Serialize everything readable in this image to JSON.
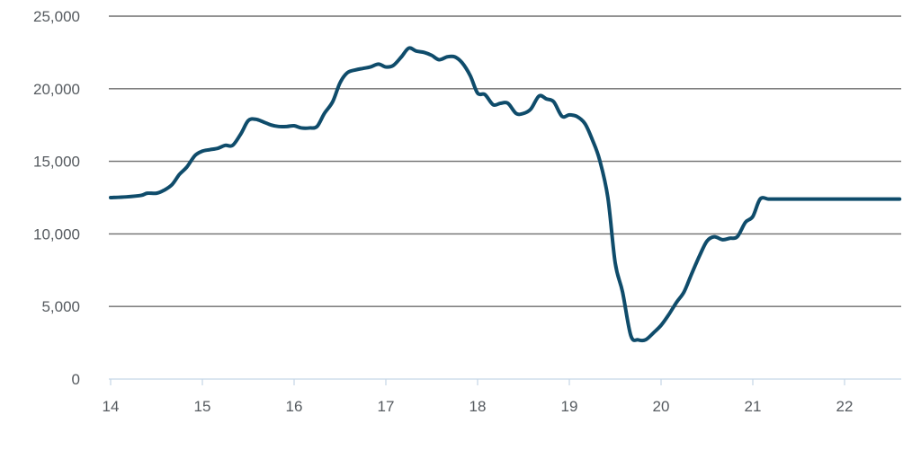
{
  "chart_data": {
    "type": "line",
    "title": "",
    "xlabel": "",
    "ylabel": "",
    "xlim": [
      14,
      22.6
    ],
    "ylim": [
      0,
      25000
    ],
    "grid": true,
    "x_ticks": [
      14,
      15,
      16,
      17,
      18,
      19,
      20,
      21,
      22
    ],
    "x_tick_labels": [
      "14",
      "15",
      "16",
      "17",
      "18",
      "19",
      "20",
      "21",
      "22"
    ],
    "y_ticks": [
      0,
      5000,
      10000,
      15000,
      20000,
      25000
    ],
    "y_tick_labels": [
      "0",
      "5,000",
      "10,000",
      "15,000",
      "20,000",
      "25,000"
    ],
    "colors": {
      "line": "#0f4c6b",
      "grid": "#6e6e6e",
      "baseline": "#c5d6e6"
    },
    "series": [
      {
        "x": [
          14.0,
          14.17,
          14.33,
          14.4,
          14.5,
          14.58,
          14.67,
          14.75,
          14.83,
          14.92,
          15.0,
          15.08,
          15.17,
          15.25,
          15.33,
          15.42,
          15.5,
          15.58,
          15.67,
          15.75,
          15.83,
          15.92,
          16.0,
          16.08,
          16.17,
          16.25,
          16.33,
          16.42,
          16.5,
          16.58,
          16.67,
          16.75,
          16.83,
          16.92,
          17.0,
          17.08,
          17.17,
          17.25,
          17.33,
          17.42,
          17.5,
          17.58,
          17.67,
          17.75,
          17.83,
          17.92,
          18.0,
          18.08,
          18.17,
          18.25,
          18.33,
          18.42,
          18.5,
          18.58,
          18.67,
          18.75,
          18.83,
          18.92,
          19.0,
          19.08,
          19.17,
          19.25,
          19.33,
          19.42,
          19.5,
          19.58,
          19.67,
          19.75,
          19.83,
          19.92,
          20.0,
          20.08,
          20.17,
          20.25,
          20.33,
          20.42,
          20.5,
          20.58,
          20.67,
          20.75,
          20.83,
          20.92,
          21.0,
          21.08,
          21.17,
          21.25,
          21.33,
          21.42,
          21.5,
          21.58,
          21.67,
          21.75,
          21.83,
          21.92,
          22.0,
          22.08,
          22.17,
          22.25,
          22.33,
          22.42,
          22.5,
          22.6
        ],
        "y": [
          12500,
          12550,
          12650,
          12800,
          12800,
          13000,
          13400,
          14100,
          14600,
          15400,
          15700,
          15800,
          15900,
          16100,
          16100,
          16900,
          17800,
          17900,
          17700,
          17500,
          17400,
          17400,
          17450,
          17300,
          17300,
          17400,
          18300,
          19100,
          20400,
          21100,
          21300,
          21400,
          21500,
          21700,
          21500,
          21600,
          22200,
          22800,
          22600,
          22500,
          22300,
          22000,
          22200,
          22200,
          21800,
          20900,
          19700,
          19600,
          18900,
          19000,
          19000,
          18300,
          18300,
          18600,
          19500,
          19300,
          19100,
          18100,
          18200,
          18100,
          17600,
          16500,
          15100,
          12500,
          8000,
          6000,
          3000,
          2700,
          2700,
          3200,
          3700,
          4400,
          5300,
          6000,
          7200,
          8500,
          9500,
          9800,
          9600,
          9700,
          9800,
          10800,
          11200,
          12400,
          12400,
          12400,
          12400,
          12400,
          12400,
          12400,
          12400,
          12400,
          12400,
          12400,
          12400,
          12400,
          12400,
          12400,
          12400,
          12400,
          12400,
          12400
        ]
      }
    ]
  }
}
